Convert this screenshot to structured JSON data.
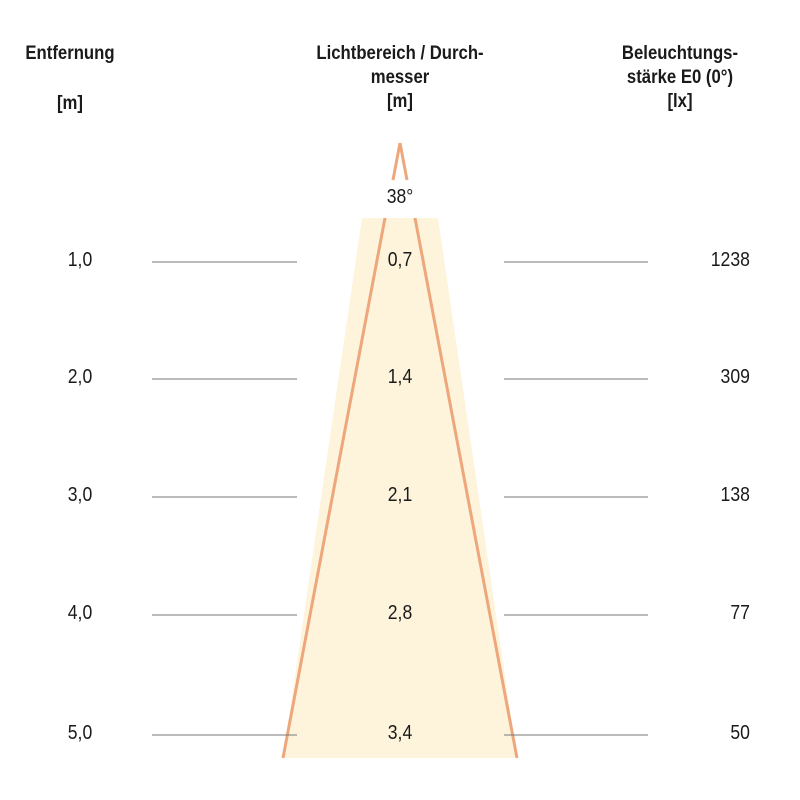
{
  "headers": {
    "distance": {
      "line1": "Entfernung",
      "unit": "[m]"
    },
    "diameter": {
      "line1": "Lichtbereich / Durch-",
      "line2": "messer",
      "unit": "[m]"
    },
    "illuminance": {
      "line1": "Beleuchtungs-",
      "line2": "stärke E0 (0°)",
      "unit": "[lx]"
    }
  },
  "beam_angle": "38°",
  "rows": [
    {
      "distance": "1,0",
      "diameter": "0,7",
      "lux": "1238"
    },
    {
      "distance": "2,0",
      "diameter": "1,4",
      "lux": "309"
    },
    {
      "distance": "3,0",
      "diameter": "2,1",
      "lux": "138"
    },
    {
      "distance": "4,0",
      "diameter": "2,8",
      "lux": "77"
    },
    {
      "distance": "5,0",
      "diameter": "3,4",
      "lux": "50"
    }
  ],
  "colors": {
    "cone_fill": "#fdf4db",
    "cone_stroke": "#eea77c",
    "rule": "#777777"
  }
}
